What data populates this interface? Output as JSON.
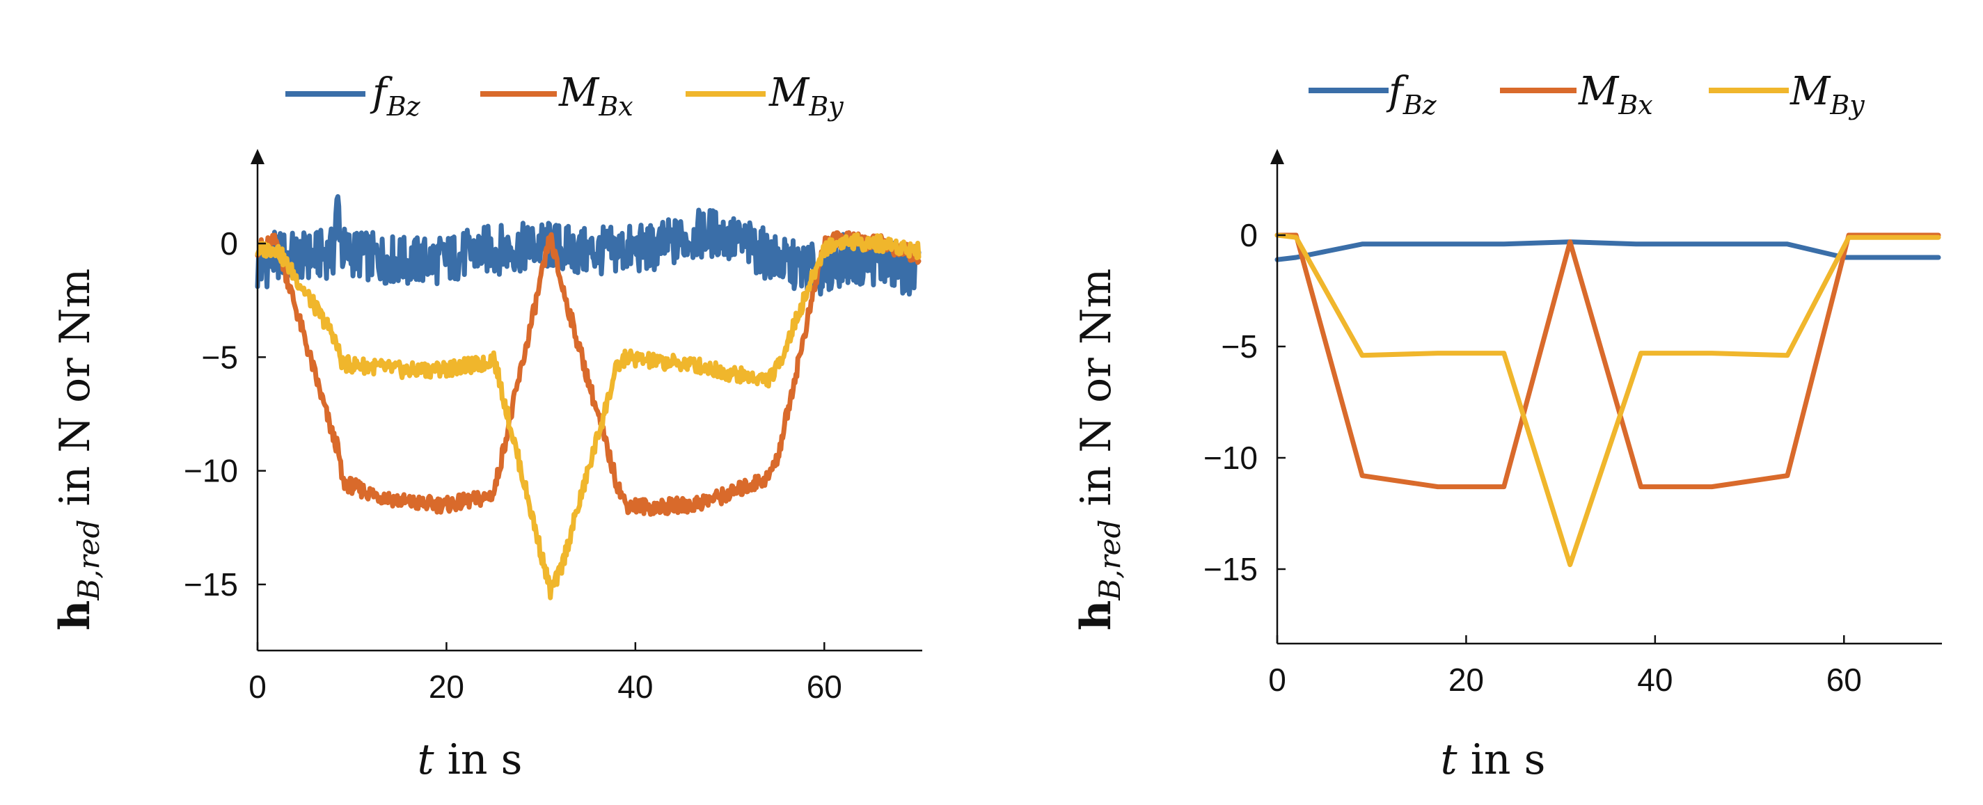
{
  "chart_data": [
    {
      "type": "line",
      "title": "",
      "xlabel_var": "t",
      "xlabel_rest": " in s",
      "ylabel_bold": "h",
      "ylabel_sub": "B,red",
      "ylabel_rest": " in N or Nm",
      "xlim": [
        0,
        70
      ],
      "ylim": [
        -18,
        4
      ],
      "xticks": [
        0,
        20,
        40,
        60
      ],
      "xtick_labels": [
        "0",
        "20",
        "40",
        "60"
      ],
      "yticks": [
        0,
        -5,
        -10,
        -15
      ],
      "ytick_labels": [
        "0",
        "−5",
        "−10",
        "−15"
      ],
      "legend_position": "top",
      "noisy": true,
      "series": [
        {
          "name": "f",
          "sub": "Bz",
          "color": "#3a6ea8",
          "x": [
            0,
            2,
            5,
            8,
            8.5,
            9,
            12,
            16,
            20,
            24,
            28,
            31,
            34,
            38,
            42,
            46,
            48,
            52,
            56,
            60,
            62,
            66,
            70
          ],
          "y": [
            -1.2,
            -0.5,
            -0.6,
            -0.4,
            1.8,
            -0.3,
            -0.6,
            -0.8,
            -0.7,
            -0.3,
            -0.2,
            -0.1,
            -0.4,
            -0.3,
            -0.2,
            0.3,
            0.5,
            -0.1,
            -0.9,
            -1.2,
            -0.7,
            -0.8,
            -1.4
          ]
        },
        {
          "name": "M",
          "sub": "Bx",
          "color": "#d96a2b",
          "x": [
            0,
            2,
            8,
            8.5,
            9,
            12,
            16,
            20,
            24,
            25,
            31,
            32,
            38,
            39,
            42,
            46,
            50,
            54,
            55,
            60,
            62,
            66,
            70
          ],
          "y": [
            -0.2,
            0.1,
            -8.5,
            -9.0,
            -10.5,
            -11.0,
            -11.4,
            -11.5,
            -11.2,
            -11.0,
            0.3,
            -1.5,
            -10.5,
            -11.5,
            -11.6,
            -11.5,
            -11.0,
            -10.3,
            -9.5,
            0,
            0.2,
            0.0,
            -0.5
          ]
        },
        {
          "name": "M",
          "sub": "By",
          "color": "#f0b62c",
          "x": [
            0,
            2,
            8,
            9,
            12,
            16,
            20,
            24,
            25,
            31,
            32,
            38,
            39,
            42,
            46,
            50,
            54,
            55,
            60,
            62,
            66,
            70
          ],
          "y": [
            -0.3,
            -0.2,
            -4.0,
            -5.3,
            -5.4,
            -5.6,
            -5.5,
            -5.3,
            -5.0,
            -15.3,
            -14.5,
            -5.5,
            -5.0,
            -5.2,
            -5.3,
            -5.7,
            -6.0,
            -5.5,
            -0.2,
            0.1,
            0.0,
            -0.3
          ]
        }
      ]
    },
    {
      "type": "line",
      "title": "",
      "xlabel_var": "t",
      "xlabel_rest": " in s",
      "ylabel_bold": "h",
      "ylabel_sub": "B,red",
      "ylabel_rest": " in N or Nm",
      "xlim": [
        0,
        70
      ],
      "ylim": [
        -18,
        3.5
      ],
      "xticks": [
        0,
        20,
        40,
        60
      ],
      "xtick_labels": [
        "0",
        "20",
        "40",
        "60"
      ],
      "yticks": [
        0,
        -5,
        -10,
        -15
      ],
      "ytick_labels": [
        "0",
        "−5",
        "−10",
        "−15"
      ],
      "legend_position": "top",
      "noisy": false,
      "series": [
        {
          "name": "f",
          "sub": "Bz",
          "color": "#3a6ea8",
          "x": [
            0,
            2,
            9,
            24,
            31,
            38,
            54,
            60,
            62,
            70
          ],
          "y": [
            -1.1,
            -1.0,
            -0.4,
            -0.4,
            -0.3,
            -0.4,
            -0.4,
            -1.0,
            -1.0,
            -1.0
          ]
        },
        {
          "name": "M",
          "sub": "Bx",
          "color": "#d96a2b",
          "x": [
            0,
            2,
            9,
            17,
            24,
            31,
            38.5,
            46,
            54,
            60.5,
            70
          ],
          "y": [
            0,
            0,
            -10.8,
            -11.3,
            -11.3,
            -0.3,
            -11.3,
            -11.3,
            -10.8,
            0,
            0
          ]
        },
        {
          "name": "M",
          "sub": "By",
          "color": "#f0b62c",
          "x": [
            0,
            2,
            9,
            17,
            24,
            31,
            38.5,
            46,
            54,
            60.5,
            70
          ],
          "y": [
            0,
            -0.1,
            -5.4,
            -5.3,
            -5.3,
            -14.8,
            -5.3,
            -5.3,
            -5.4,
            -0.1,
            -0.1
          ]
        }
      ]
    }
  ]
}
